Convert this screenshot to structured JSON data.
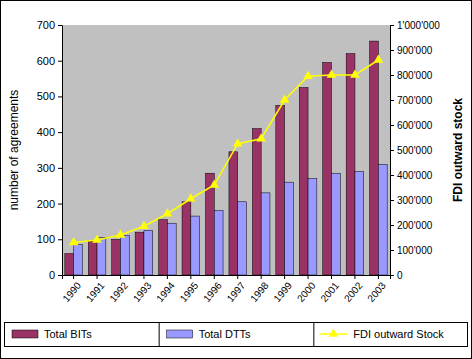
{
  "chart_data": {
    "type": "bar",
    "categories": [
      "1990",
      "1991",
      "1992",
      "1993",
      "1994",
      "1995",
      "1996",
      "1997",
      "1998",
      "1999",
      "2000",
      "2001",
      "2002",
      "2003"
    ],
    "y_label": "number of agreements",
    "y2_label": "FDI outward stock",
    "ylim": [
      0,
      700
    ],
    "yticks": [
      0,
      100,
      200,
      300,
      400,
      500,
      600,
      700
    ],
    "y2lim": [
      0,
      1000000
    ],
    "y2ticks": [
      0,
      {
        "value": 100000,
        "label": "100'000"
      },
      {
        "value": 200000,
        "label": "200'000"
      },
      {
        "value": 300000,
        "label": "300'000"
      },
      {
        "value": 400000,
        "label": "400'000"
      },
      {
        "value": 500000,
        "label": "500'000"
      },
      {
        "value": 600000,
        "label": "600'000"
      },
      {
        "value": 700000,
        "label": "700'000"
      },
      {
        "value": 800000,
        "label": "800'000"
      },
      {
        "value": 900000,
        "label": "900'000"
      },
      {
        "value": 1000000,
        "label": "1'000'000"
      }
    ],
    "grid": false,
    "legend": "bottom",
    "series": [
      {
        "name": "Total BITs",
        "type": "bar",
        "color": "#993366",
        "values": [
          60,
          95,
          100,
          120,
          155,
          205,
          285,
          345,
          410,
          475,
          525,
          595,
          620,
          655
        ]
      },
      {
        "name": "Total DTTs",
        "type": "bar",
        "color": "#9999ff",
        "values": [
          85,
          105,
          110,
          125,
          145,
          165,
          180,
          205,
          230,
          260,
          270,
          285,
          290,
          310
        ]
      },
      {
        "name": "FDI outward Stock",
        "type": "line",
        "axis": "y2",
        "color": "#ffff00",
        "marker": "triangle",
        "values": [
          130000,
          140000,
          160000,
          195000,
          245000,
          305000,
          360000,
          525000,
          545000,
          700000,
          795000,
          800000,
          800000,
          860000
        ]
      }
    ]
  }
}
